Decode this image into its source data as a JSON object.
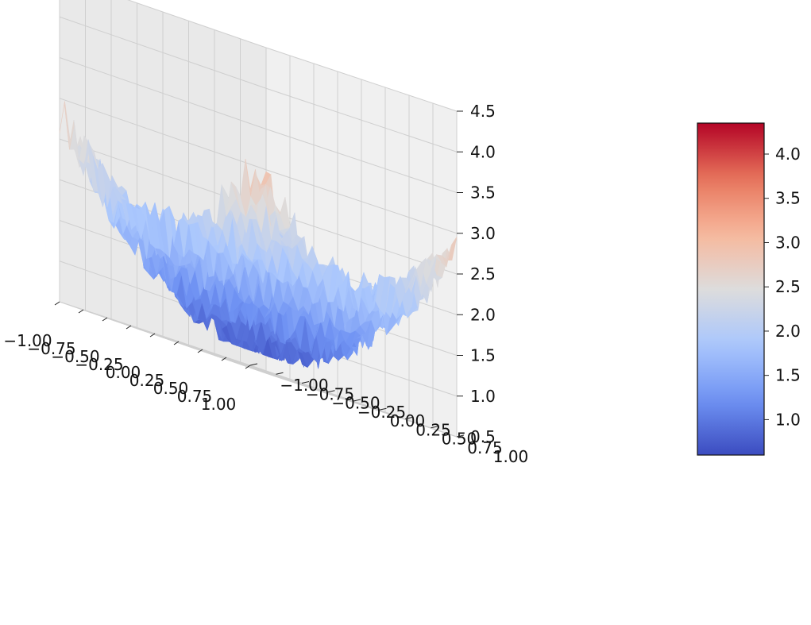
{
  "chart_data": {
    "type": "surface3d",
    "title": "",
    "xlabel": "",
    "ylabel": "",
    "zlabel": "",
    "colormap": "coolwarm",
    "colormap_stops": [
      "#3b4cc0",
      "#6f92f3",
      "#aac7fd",
      "#dddcdc",
      "#f7b89c",
      "#e7745b",
      "#b40426"
    ],
    "x_ticks": [
      "−1.00",
      "−0.75",
      "−0.50",
      "−0.25",
      "0.00",
      "0.25",
      "0.50",
      "0.75",
      "1.00"
    ],
    "y_ticks": [
      "−1.00",
      "−0.75",
      "−0.50",
      "−0.25",
      "0.00",
      "0.25",
      "0.50",
      "0.75",
      "1.00"
    ],
    "z_ticks": [
      "0.5",
      "1.0",
      "1.5",
      "2.0",
      "2.5",
      "3.0",
      "3.5",
      "4.0",
      "4.5"
    ],
    "xlim": [
      -1,
      1
    ],
    "ylim": [
      -1,
      1
    ],
    "zlim": [
      0.5,
      4.5
    ],
    "colorbar": {
      "range": [
        0.6,
        4.35
      ],
      "ticks": [
        "1.0",
        "1.5",
        "2.0",
        "2.5",
        "3.0",
        "3.5",
        "4.0"
      ],
      "location": "right"
    },
    "grid": true,
    "surface": {
      "function": "x^2 + y^2 + 2 + noise",
      "z_min": 0.7,
      "z_max": 4.3
    }
  }
}
